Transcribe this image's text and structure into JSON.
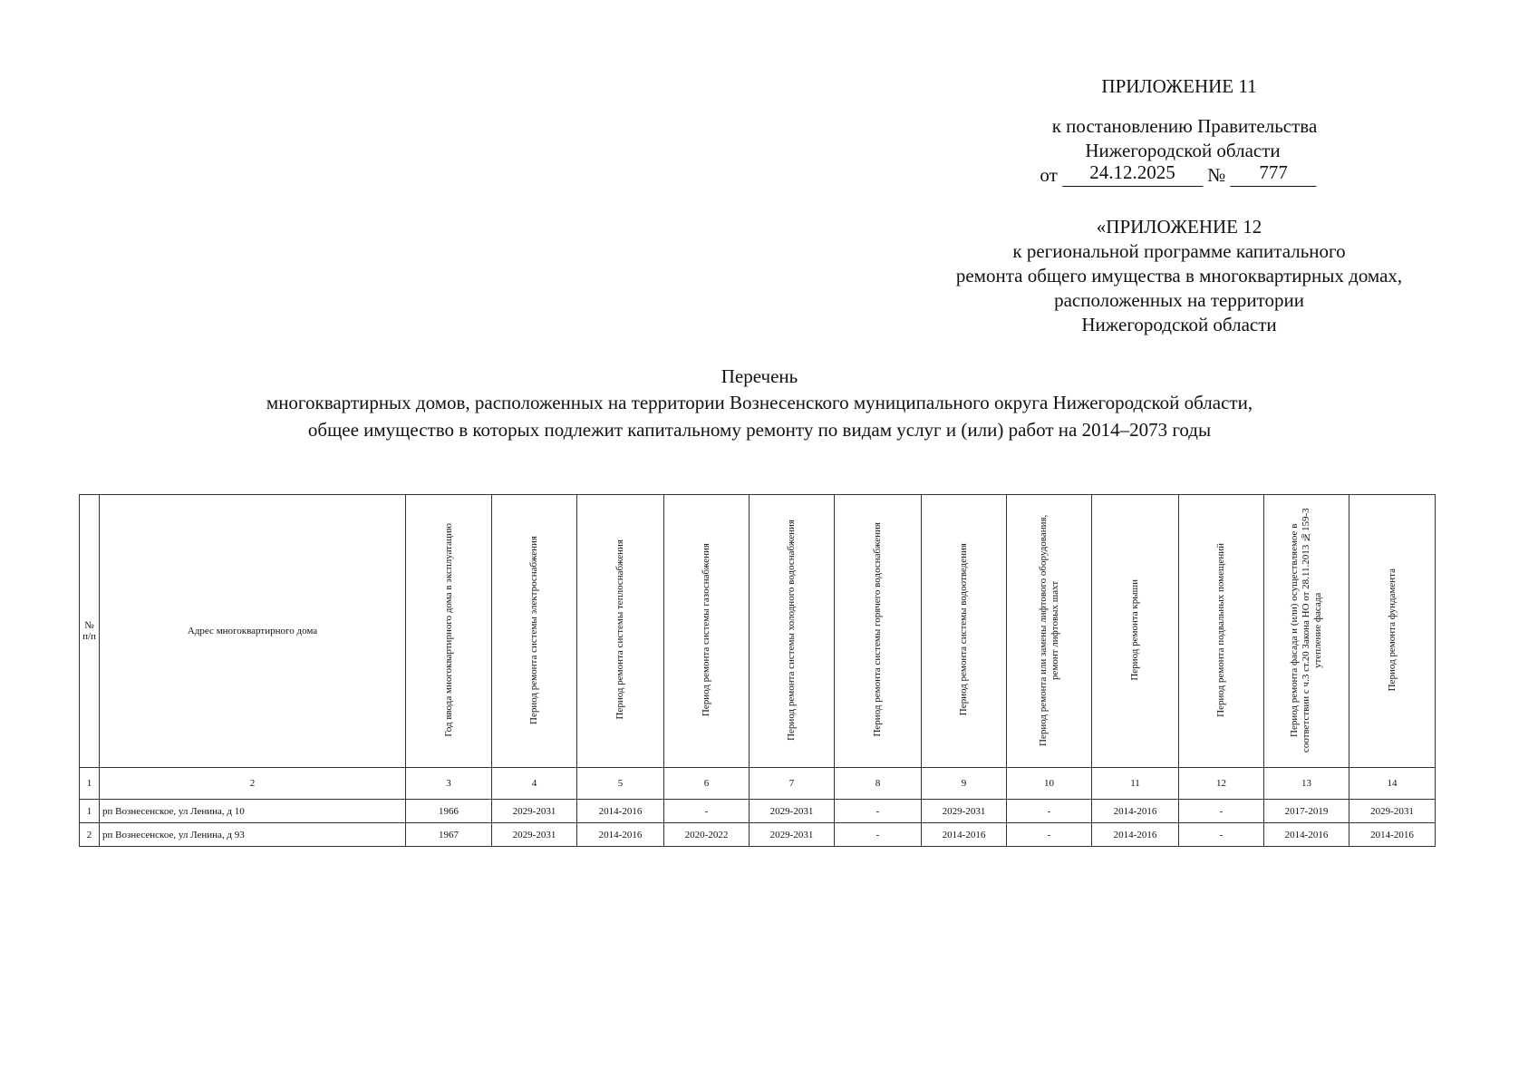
{
  "header": {
    "appendix": "ПРИЛОЖЕНИЕ 11",
    "to_resolution": "к постановлению Правительства",
    "region": "Нижегородской области",
    "from_label": "от",
    "date": "24.12.2025",
    "number_label": "№",
    "number": "777"
  },
  "program_header": {
    "lines": [
      "«ПРИЛОЖЕНИЕ 12",
      "к региональной программе капитального",
      "ремонта общего имущества в многоквартирных домах,",
      "расположенных на территории",
      "Нижегородской области"
    ]
  },
  "title": {
    "lines": [
      "Перечень",
      "многоквартирных домов, расположенных на территории  Вознесенского муниципального округа Нижегородской области,",
      "общее имущество  в которых  подлежит  капитальному ремонту по видам  услуг и (или)  работ  на 2014–2073  годы"
    ]
  },
  "table": {
    "columns": [
      "№ п/п",
      "Адрес многоквартирного дома",
      "Год ввода многоквартирного дома в эксплуатацию",
      "Период ремонта системы электроснабжения",
      "Период ремонта системы теплоснабжения",
      "Период ремонта системы газоснабжения",
      "Период ремонта системы холодного водоснабжения",
      "Период ремонта системы горячего водоснабжения",
      "Период ремонта системы водоотведения",
      "Период ремонта или замены лифтового оборудования, ремонт лифтовых шахт",
      "Период ремонта крыши",
      "Период ремонта подвальных помещений",
      "Период ремонта фасада и (или) осуществляемое в соответствии с ч.3 ст.20 Закона НО от 28.11.2013 №159-3 утепление фасада",
      "Период ремонта фундамента"
    ],
    "column_numbers": [
      "1",
      "2",
      "3",
      "4",
      "5",
      "6",
      "7",
      "8",
      "9",
      "10",
      "11",
      "12",
      "13",
      "14"
    ],
    "rows": [
      [
        "1",
        "рп Вознесенское, ул Ленина, д 10",
        "1966",
        "2029-2031",
        "2014-2016",
        "-",
        "2029-2031",
        "-",
        "2029-2031",
        "-",
        "2014-2016",
        "-",
        "2017-2019",
        "2029-2031"
      ],
      [
        "2",
        "рп Вознесенское, ул Ленина, д 93",
        "1967",
        "2029-2031",
        "2014-2016",
        "2020-2022",
        "2029-2031",
        "-",
        "2014-2016",
        "-",
        "2014-2016",
        "-",
        "2014-2016",
        "2014-2016"
      ]
    ]
  }
}
